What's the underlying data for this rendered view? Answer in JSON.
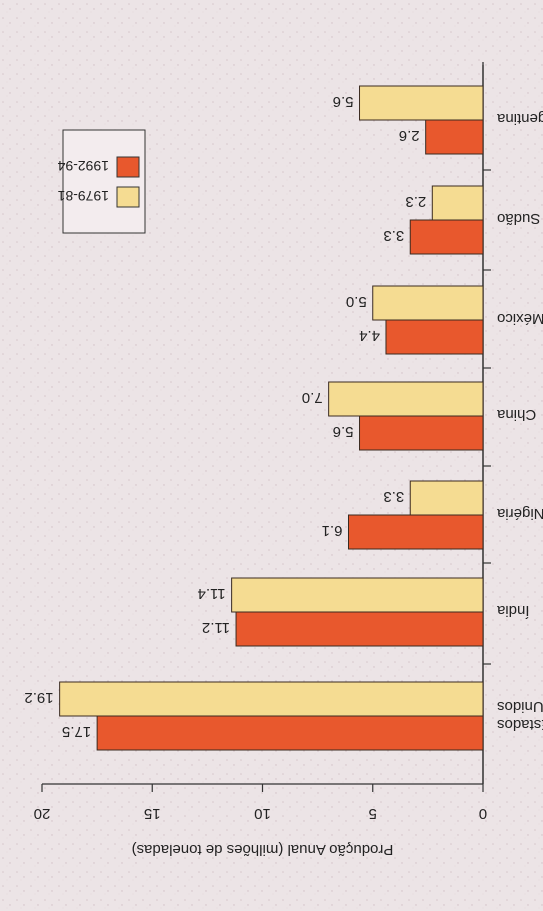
{
  "chart_data": {
    "type": "bar",
    "orientation": "horizontal",
    "ylabel": "Produção Anual (milhões de toneladas)",
    "ylim": [
      0,
      20
    ],
    "y_ticks": [
      0,
      5,
      10,
      15,
      20
    ],
    "categories": [
      "Estados Unidos",
      "Índia",
      "Nigéria",
      "China",
      "México",
      "Sudão",
      "Argentina"
    ],
    "category_lines": [
      [
        "Estados",
        "Unidos"
      ],
      [
        "Índia"
      ],
      [
        "Nigéria"
      ],
      [
        "China"
      ],
      [
        "México"
      ],
      [
        "Sudão"
      ],
      [
        "Argentina"
      ]
    ],
    "series": [
      {
        "name": "1992-94",
        "color": "#e8582d",
        "values": [
          17.5,
          11.2,
          6.1,
          5.6,
          4.4,
          3.3,
          2.6
        ],
        "labels": [
          "17.5",
          "11.2",
          "6.1",
          "5.6",
          "4.4",
          "3.3",
          "2.6"
        ]
      },
      {
        "name": "1979-81",
        "color": "#f5dc92",
        "values": [
          19.2,
          11.4,
          3.3,
          7.0,
          5.0,
          2.3,
          5.6
        ],
        "labels": [
          "19.2",
          "11.4",
          "3.3",
          "7.0",
          "5.0",
          "2.3",
          "5.6"
        ]
      }
    ],
    "legend_position": "top-right",
    "grid": false,
    "rotation": "image rotated 90 degrees clockwise (text reads upside down)"
  }
}
